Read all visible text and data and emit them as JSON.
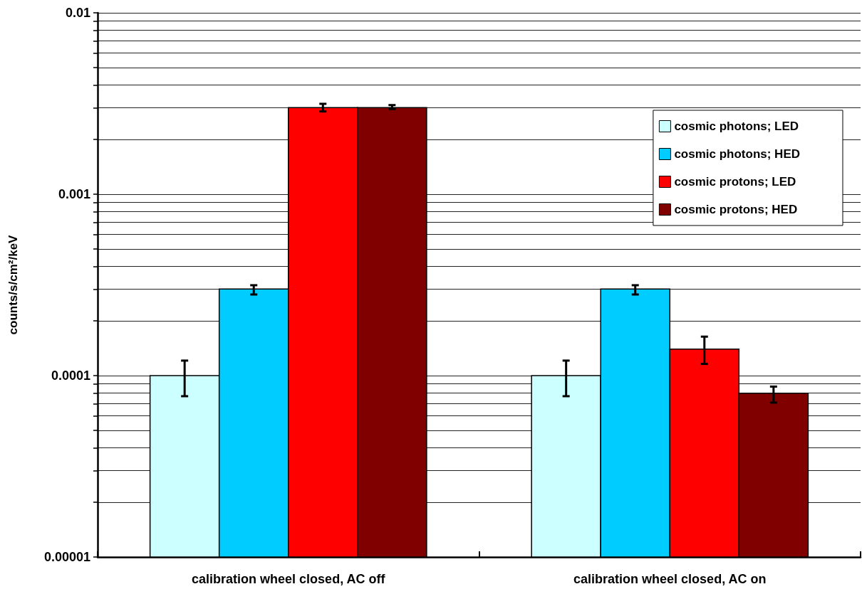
{
  "chart_data": {
    "type": "bar",
    "ylabel": "counts/s/cm²/keV",
    "categories": [
      "calibration wheel closed, AC off",
      "calibration wheel closed, AC on"
    ],
    "series": [
      {
        "name": "cosmic photons; LED",
        "color": "#ccffff",
        "values": [
          0.0001,
          0.0001
        ],
        "errors": [
          [
            7.7e-05,
            0.000121
          ],
          [
            7.7e-05,
            0.000121
          ]
        ]
      },
      {
        "name": "cosmic photons; HED",
        "color": "#00ccff",
        "values": [
          0.0003,
          0.0003
        ],
        "errors": [
          [
            0.00028,
            0.000315
          ],
          [
            0.00028,
            0.000315
          ]
        ]
      },
      {
        "name": "cosmic protons; LED",
        "color": "#ff0000",
        "values": [
          0.003,
          0.00014
        ],
        "errors": [
          [
            0.00286,
            0.00315
          ],
          [
            0.000116,
            0.000164
          ]
        ]
      },
      {
        "name": "cosmic protons; HED",
        "color": "#800000",
        "values": [
          0.003,
          8e-05
        ],
        "errors": [
          [
            0.00295,
            0.0031
          ],
          [
            7.1e-05,
            8.7e-05
          ]
        ]
      }
    ],
    "log": "y",
    "ylim": [
      1e-05,
      0.01
    ],
    "yticks": [
      {
        "value": 1e-05,
        "label": "0.00001"
      },
      {
        "value": 2e-05,
        "label": null
      },
      {
        "value": 3e-05,
        "label": null
      },
      {
        "value": 4e-05,
        "label": null
      },
      {
        "value": 5e-05,
        "label": null
      },
      {
        "value": 6e-05,
        "label": null
      },
      {
        "value": 7e-05,
        "label": null
      },
      {
        "value": 8e-05,
        "label": null
      },
      {
        "value": 9e-05,
        "label": null
      },
      0.0001,
      {
        "value": 0.0002,
        "label": null
      },
      {
        "value": 0.0003,
        "label": null
      },
      {
        "value": 0.0004,
        "label": null
      },
      {
        "value": 0.0005,
        "label": null
      },
      {
        "value": 0.0006,
        "label": null
      },
      {
        "value": 0.0007,
        "label": null
      },
      {
        "value": 0.0008,
        "label": null
      },
      {
        "value": 0.0009,
        "label": null
      },
      0.001,
      {
        "value": 0.002,
        "label": null
      },
      {
        "value": 0.003,
        "label": null
      },
      {
        "value": 0.004,
        "label": null
      },
      {
        "value": 0.005,
        "label": null
      },
      {
        "value": 0.006,
        "label": null
      },
      {
        "value": 0.007,
        "label": null
      },
      {
        "value": 0.008,
        "label": null
      },
      {
        "value": 0.009,
        "label": null
      },
      0.01
    ],
    "grid": "y",
    "legend": "top right"
  }
}
